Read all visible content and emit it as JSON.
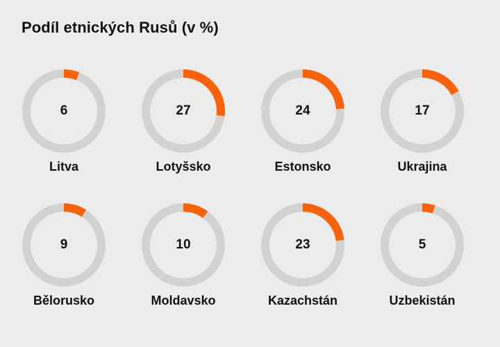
{
  "chart_data": {
    "type": "donut",
    "title": "Podíl etnických Rusů (v %)",
    "max": 100,
    "colors": {
      "fill": "#f7630c",
      "track": "#d2d2d2",
      "background": "#ececec",
      "text": "#111111"
    },
    "items": [
      {
        "label": "Litva",
        "value": 6
      },
      {
        "label": "Lotyšsko",
        "value": 27
      },
      {
        "label": "Estonsko",
        "value": 24
      },
      {
        "label": "Ukrajina",
        "value": 17
      },
      {
        "label": "Bělorusko",
        "value": 9
      },
      {
        "label": "Moldavsko",
        "value": 10
      },
      {
        "label": "Kazachstán",
        "value": 23
      },
      {
        "label": "Uzbekistán",
        "value": 5
      }
    ]
  }
}
